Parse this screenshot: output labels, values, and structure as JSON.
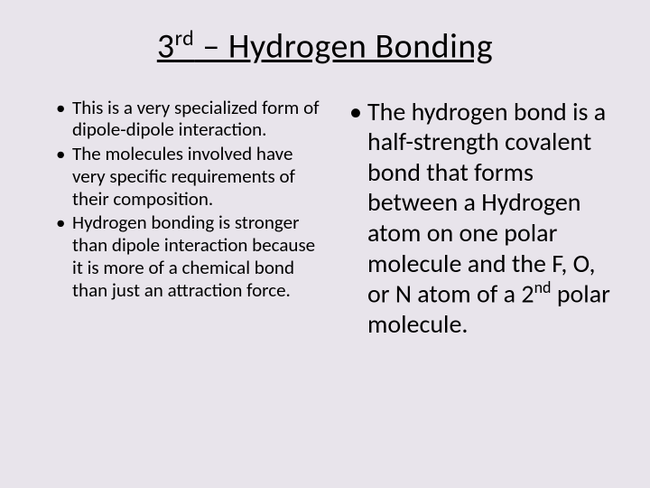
{
  "slide": {
    "background_color": "#e8e4eb",
    "text_color": "#000000",
    "title": {
      "prefix": "3",
      "superscript": "rd",
      "rest": " – Hydrogen Bonding",
      "fontsize": 38,
      "underline": true
    },
    "left_column": {
      "fontsize": 21,
      "bullets": [
        "This is a very specialized form of dipole-dipole interaction.",
        "The molecules involved have very specific requirements of their composition.",
        "Hydrogen bonding is stronger than dipole interaction because it is more of a chemical bond than just an attraction force."
      ]
    },
    "right_column": {
      "fontsize": 28,
      "bullet_parts": {
        "before_sup": "The hydrogen bond is a half-strength covalent bond that forms between a Hydrogen atom on one polar molecule and the F, O, or N atom of a 2",
        "superscript": "nd",
        "after_sup": " polar molecule."
      }
    }
  }
}
